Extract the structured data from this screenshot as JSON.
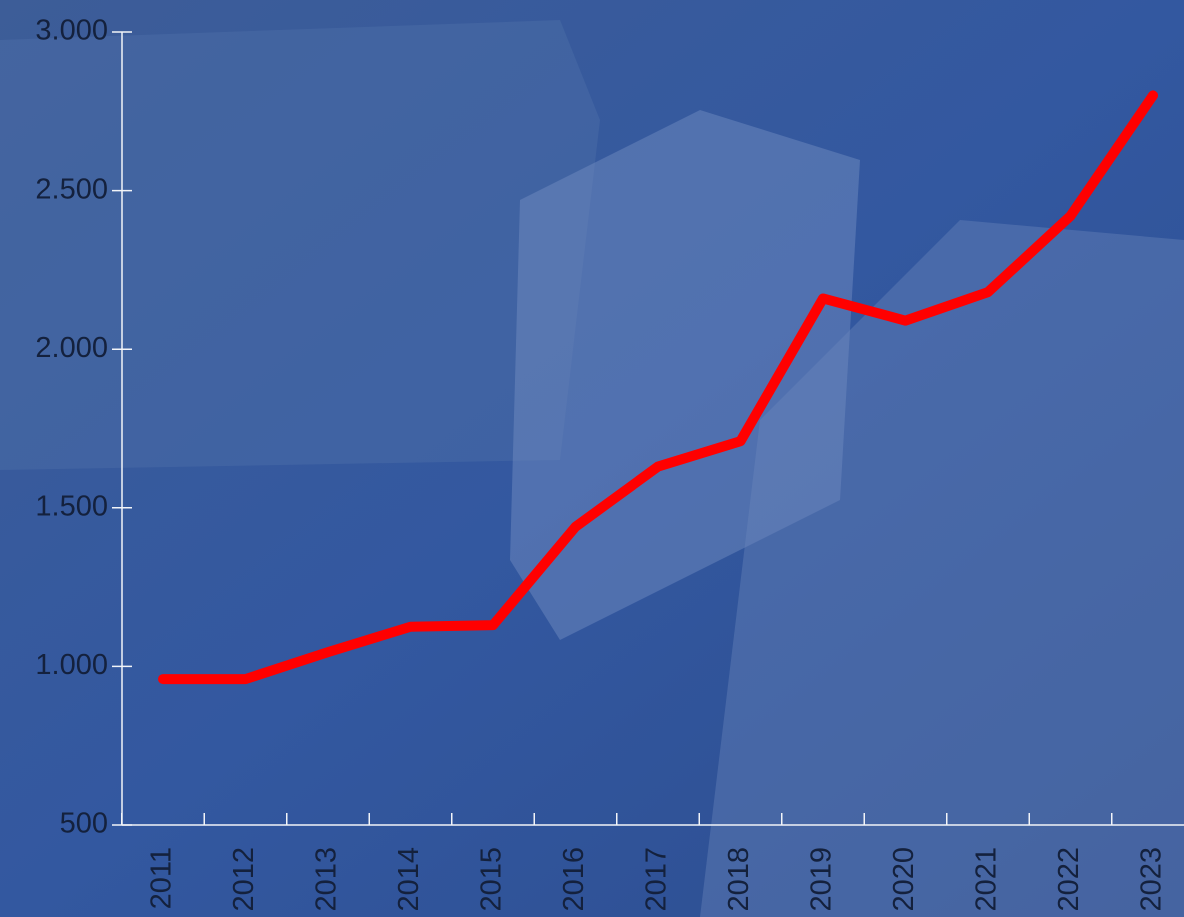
{
  "chart_data": {
    "type": "line",
    "categories": [
      "2011",
      "2012",
      "2013",
      "2014",
      "2015",
      "2016",
      "2017",
      "2018",
      "2019",
      "2020",
      "2021",
      "2022",
      "2023"
    ],
    "series": [
      {
        "color": "#ff0000",
        "values": [
          960,
          960,
          1045,
          1125,
          1130,
          1440,
          1630,
          1710,
          2160,
          2090,
          2180,
          2420,
          2800
        ]
      }
    ],
    "ylim": [
      500,
      3000
    ],
    "yticks": [
      500,
      {
        "value": 1000,
        "label": "1.000"
      },
      {
        "value": 1500,
        "label": "1.500"
      },
      {
        "value": 2000,
        "label": "2.000"
      },
      {
        "value": 2500,
        "label": "2.500"
      },
      {
        "value": 3000,
        "label": "3.000"
      }
    ],
    "grid": false
  }
}
